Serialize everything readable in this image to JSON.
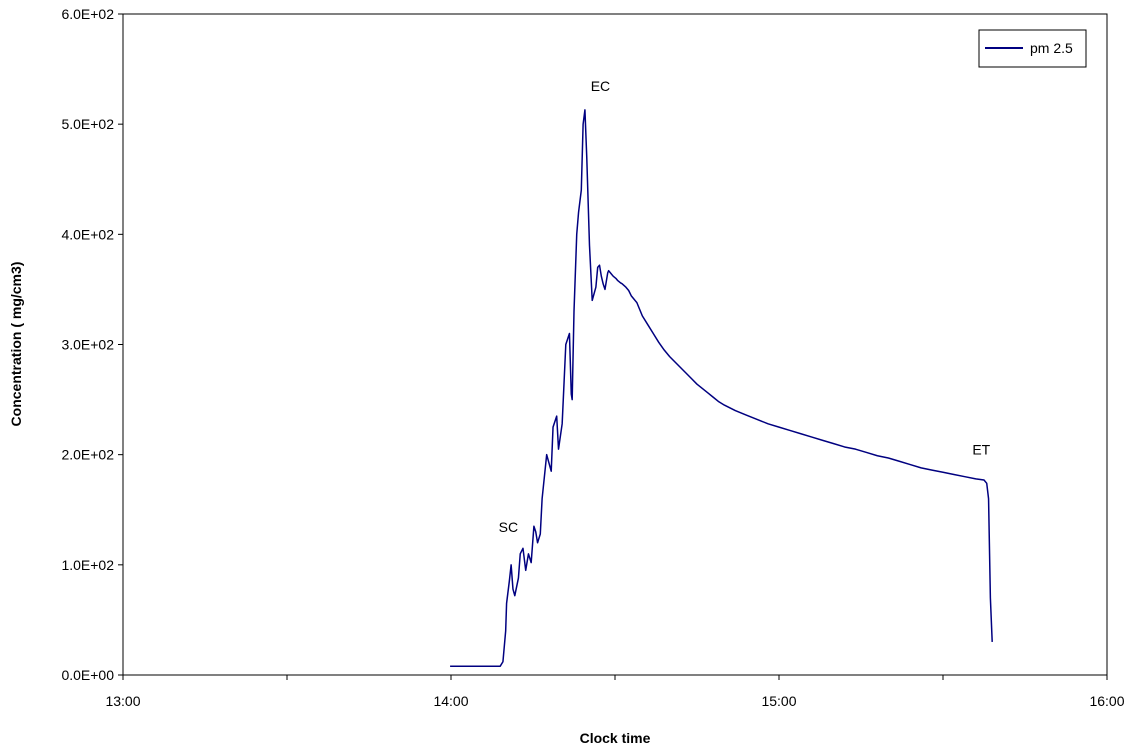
{
  "chart_data": {
    "type": "line",
    "title": "",
    "xlabel": "Clock time",
    "ylabel": "Concentration ( mg/cm3)",
    "xlim": [
      "13:00",
      "16:00"
    ],
    "ylim": [
      0,
      600
    ],
    "x_ticks": [
      "13:00",
      "14:00",
      "15:00",
      "16:00"
    ],
    "y_ticks": [
      "0.0E+00",
      "1.0E+02",
      "2.0E+02",
      "3.0E+02",
      "4.0E+02",
      "5.0E+02",
      "6.0E+02"
    ],
    "grid": false,
    "legend": {
      "placement": "top-right",
      "entries": [
        "pm 2.5"
      ]
    },
    "series": [
      {
        "name": "pm 2.5",
        "color": "#000080",
        "x": [
          "13:59:50",
          "14:09:00",
          "14:09:30",
          "14:10:00",
          "14:10:10",
          "14:10:40",
          "14:11:00",
          "14:11:20",
          "14:11:40",
          "14:12:20",
          "14:12:40",
          "14:13:10",
          "14:13:40",
          "14:14:10",
          "14:14:40",
          "14:15:10",
          "14:15:30",
          "14:15:50",
          "14:16:20",
          "14:16:40",
          "14:17:30",
          "14:18:20",
          "14:18:40",
          "14:19:20",
          "14:19:40",
          "14:20:20",
          "14:21:00",
          "14:21:40",
          "14:22:00",
          "14:22:10",
          "14:22:30",
          "14:23:00",
          "14:23:20",
          "14:23:50",
          "14:24:10",
          "14:24:30",
          "14:24:50",
          "14:25:20",
          "14:25:50",
          "14:26:30",
          "14:26:50",
          "14:27:10",
          "14:27:30",
          "14:27:50",
          "14:28:10",
          "14:28:20",
          "14:28:40",
          "14:28:50",
          "14:29:10",
          "14:29:20",
          "14:29:40",
          "14:30:10",
          "14:30:30",
          "14:31:00",
          "14:31:20",
          "14:32:00",
          "14:32:30",
          "14:33:00",
          "14:34:00",
          "14:34:30",
          "14:35:00",
          "14:36:00",
          "14:37:00",
          "14:38:00",
          "14:39:00",
          "14:40:00",
          "14:41:00",
          "14:42:00",
          "14:43:00",
          "14:44:00",
          "14:45:00",
          "14:46:00",
          "14:47:00",
          "14:48:00",
          "14:49:00",
          "14:50:00",
          "14:52:00",
          "14:54:00",
          "14:56:00",
          "14:58:00",
          "15:00:00",
          "15:02:00",
          "15:04:00",
          "15:06:00",
          "15:08:00",
          "15:10:00",
          "15:12:00",
          "15:14:00",
          "15:16:00",
          "15:18:00",
          "15:20:00",
          "15:22:00",
          "15:24:00",
          "15:26:00",
          "15:28:00",
          "15:30:00",
          "15:32:00",
          "15:34:00",
          "15:36:00",
          "15:37:30",
          "15:38:00",
          "15:38:20",
          "15:38:40",
          "15:39:00"
        ],
        "values": [
          8,
          8,
          12,
          40,
          65,
          85,
          100,
          78,
          72,
          88,
          110,
          115,
          95,
          110,
          102,
          135,
          130,
          120,
          128,
          160,
          200,
          185,
          225,
          235,
          205,
          228,
          300,
          310,
          255,
          250,
          330,
          400,
          420,
          440,
          500,
          513,
          470,
          390,
          340,
          352,
          370,
          372,
          362,
          355,
          350,
          355,
          365,
          367,
          365,
          364,
          362,
          360,
          358,
          356,
          355,
          352,
          349,
          344,
          338,
          332,
          326,
          318,
          310,
          302,
          295,
          289,
          284,
          279,
          274,
          269,
          264,
          260,
          256,
          252,
          248,
          245,
          240,
          236,
          232,
          228,
          225,
          222,
          219,
          216,
          213,
          210,
          207,
          205,
          202,
          199,
          197,
          194,
          191,
          188,
          186,
          184,
          182,
          180,
          178,
          177,
          174,
          160,
          70,
          30
        ]
      }
    ],
    "annotations": [
      {
        "text": "SC",
        "x": "14:10:30",
        "y": 130
      },
      {
        "text": "EC",
        "x": "14:27:20",
        "y": 530
      },
      {
        "text": "ET",
        "x": "15:37:00",
        "y": 200
      }
    ]
  }
}
